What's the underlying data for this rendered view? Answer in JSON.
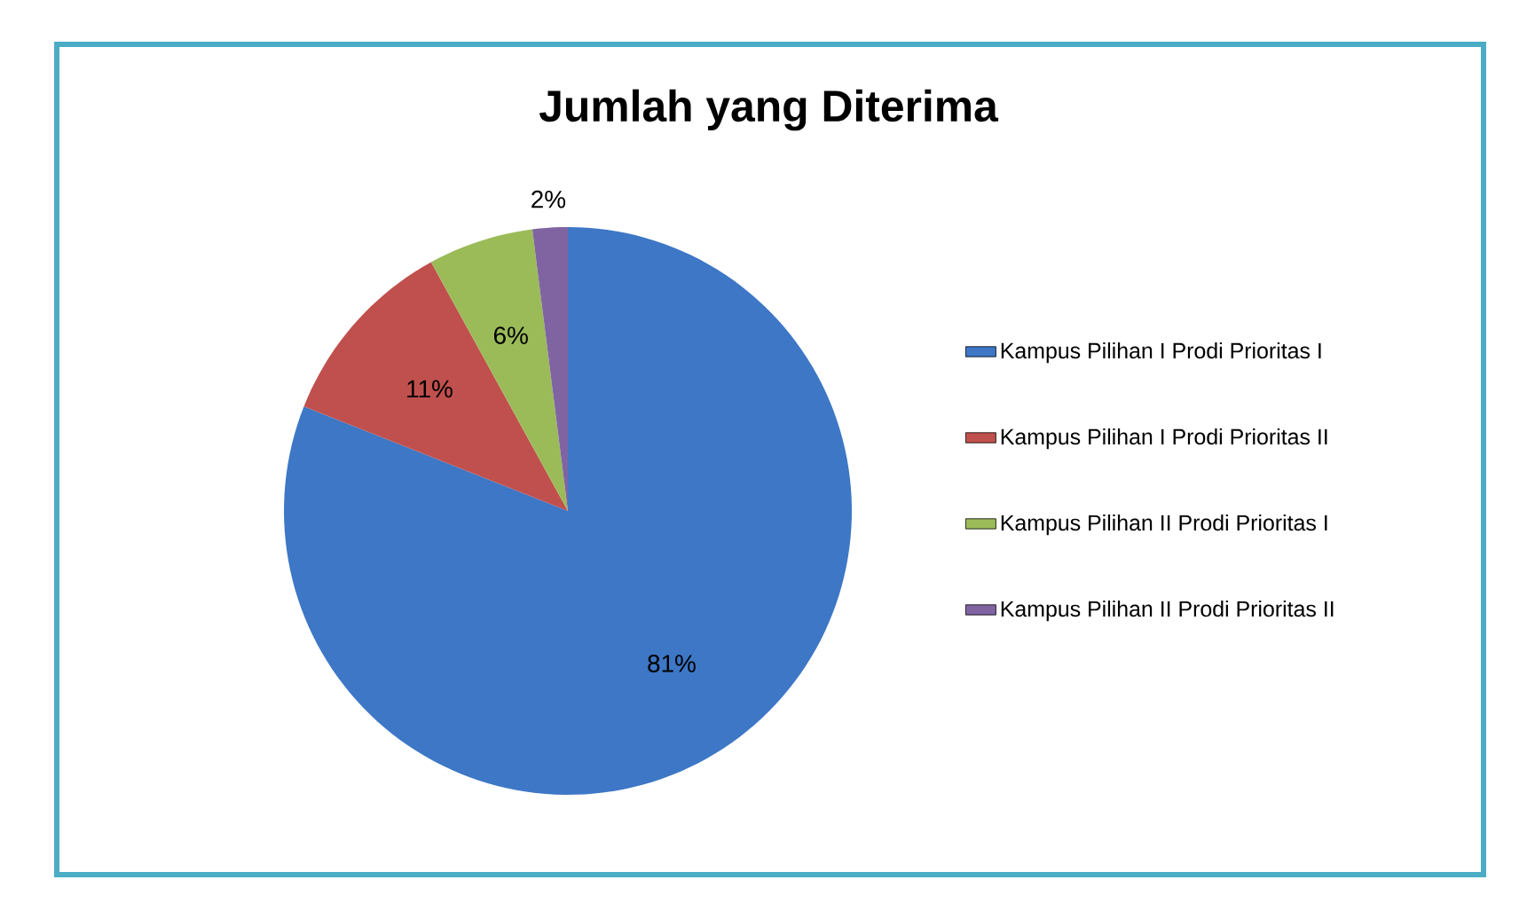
{
  "chart_data": {
    "type": "pie",
    "title": "Jumlah yang Diterima",
    "categories": [
      "Kampus Pilihan I Prodi Prioritas I",
      "Kampus Pilihan I Prodi Prioritas II",
      "Kampus Pilihan II Prodi Prioritas I",
      "Kampus Pilihan II Prodi Prioritas II"
    ],
    "values": [
      81,
      11,
      6,
      2
    ],
    "value_labels": [
      "81%",
      "11%",
      "6%",
      "2%"
    ],
    "colors": [
      "#3d77c6",
      "#c0504d",
      "#9bbb59",
      "#8064a2"
    ],
    "legend": "right"
  }
}
